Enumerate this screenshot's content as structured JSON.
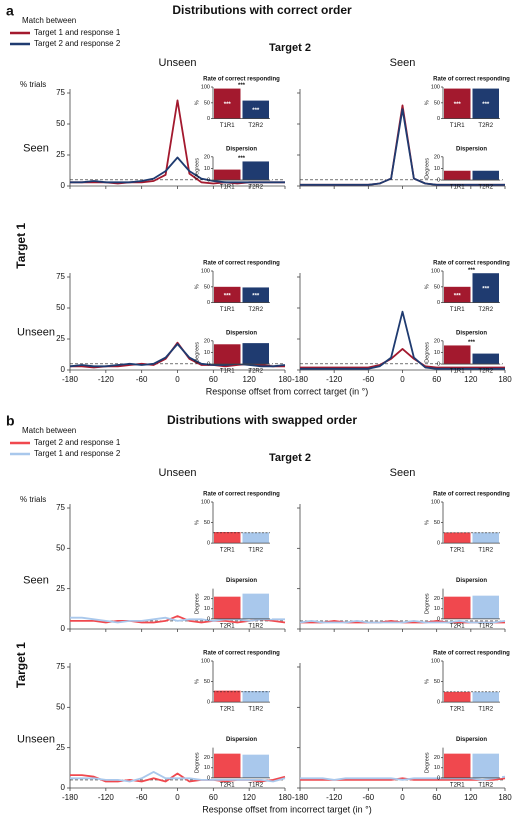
{
  "chart_data": [
    {
      "type": "line",
      "label": "a",
      "title": "Distributions with correct order",
      "legend_title": "Match between",
      "series": [
        {
          "name": "Target 1 and response 1",
          "color": "#a3192e"
        },
        {
          "name": "Target 2 and response 2",
          "color": "#1f3b70"
        }
      ],
      "column_title": "Target 2",
      "columns": [
        "Unseen",
        "Seen"
      ],
      "row_title": "Target 1",
      "rows": [
        "Seen",
        "Unseen"
      ],
      "ylabel": "% trials",
      "xlabel": "Response offset from correct target (in °)",
      "x": [
        -180,
        -160,
        -140,
        -120,
        -100,
        -80,
        -60,
        -40,
        -20,
        0,
        20,
        40,
        60,
        80,
        100,
        120,
        140,
        160,
        180
      ],
      "xlim": [
        -180,
        180
      ],
      "xticks": [
        -180,
        -120,
        -60,
        0,
        60,
        120,
        180
      ],
      "ylim": [
        0,
        75
      ],
      "yticks": [
        0,
        25,
        50,
        75
      ],
      "chance": 5,
      "rate": {
        "title": "Rate of correct responding",
        "ylabel": "%",
        "categories": [
          "T1R1",
          "T2R2"
        ],
        "ylim": [
          0,
          100
        ],
        "yticks": [
          0,
          50,
          100
        ]
      },
      "dispersion": {
        "title": "Dispersion",
        "ylabel": "Degrees",
        "categories": [
          "T1R1",
          "T2R2"
        ],
        "ylim": [
          0,
          20
        ],
        "yticks": [
          0,
          10,
          20
        ]
      },
      "plots": [
        {
          "values": [
            [
              3,
              3,
              3,
              3,
              2,
              3,
              3,
              4,
              9,
              69,
              10,
              3,
              2,
              3,
              2,
              3,
              3,
              3,
              3
            ],
            [
              3,
              3,
              4,
              3,
              3,
              3,
              4,
              6,
              12,
              23,
              12,
              6,
              4,
              3,
              3,
              3,
              3,
              3,
              3
            ]
          ],
          "rate": {
            "values": [
              95,
              57
            ],
            "bar_marks": [
              "***",
              "***"
            ],
            "significance": "***"
          },
          "dispersion": {
            "values": [
              9,
              16
            ],
            "significance": "***"
          }
        },
        {
          "values": [
            [
              1,
              1,
              1,
              1,
              1,
              1,
              1,
              2,
              6,
              65,
              6,
              2,
              1,
              1,
              1,
              1,
              1,
              1,
              1
            ],
            [
              1,
              1,
              1,
              1,
              1,
              1,
              1,
              2,
              6,
              62,
              6,
              2,
              1,
              1,
              1,
              1,
              1,
              1,
              1
            ]
          ],
          "rate": {
            "values": [
              95,
              95
            ],
            "bar_marks": [
              "***",
              "***"
            ]
          },
          "dispersion": {
            "values": [
              8,
              8
            ]
          }
        },
        {
          "values": [
            [
              3,
              3,
              2,
              3,
              3,
              4,
              5,
              4,
              9,
              22,
              9,
              4,
              4,
              3,
              4,
              5,
              4,
              3,
              3
            ],
            [
              3,
              4,
              3,
              3,
              4,
              5,
              4,
              5,
              10,
              21,
              10,
              5,
              4,
              4,
              5,
              4,
              3,
              3,
              4
            ]
          ],
          "rate": {
            "values": [
              50,
              48
            ],
            "bar_marks": [
              "***",
              "***"
            ]
          },
          "dispersion": {
            "values": [
              17,
              18
            ]
          }
        },
        {
          "values": [
            [
              2,
              2,
              2,
              2,
              2,
              2,
              2,
              4,
              9,
              17,
              9,
              3,
              2,
              2,
              2,
              2,
              2,
              2,
              2
            ],
            [
              1,
              1,
              1,
              1,
              1,
              1,
              1,
              3,
              10,
              47,
              10,
              2,
              1,
              1,
              1,
              1,
              1,
              1,
              1
            ]
          ],
          "rate": {
            "values": [
              50,
              93
            ],
            "bar_marks": [
              "***",
              "***"
            ],
            "significance": "***"
          },
          "dispersion": {
            "values": [
              16,
              9
            ],
            "significance": "***"
          }
        }
      ]
    },
    {
      "type": "line",
      "label": "b",
      "title": "Distributions with swapped order",
      "legend_title": "Match between",
      "series": [
        {
          "name": "Target 2 and response 1",
          "color": "#f0484e"
        },
        {
          "name": "Target 1 and response 2",
          "color": "#a9c8ec"
        }
      ],
      "column_title": "Target 2",
      "columns": [
        "Unseen",
        "Seen"
      ],
      "row_title": "Target 1",
      "rows": [
        "Seen",
        "Unseen"
      ],
      "ylabel": "% trials",
      "xlabel": "Response offset from incorrect target (in °)",
      "x": [
        -180,
        -160,
        -140,
        -120,
        -100,
        -80,
        -60,
        -40,
        -20,
        0,
        20,
        40,
        60,
        80,
        100,
        120,
        140,
        160,
        180
      ],
      "xlim": [
        -180,
        180
      ],
      "xticks": [
        -180,
        -120,
        -60,
        0,
        60,
        120,
        180
      ],
      "ylim": [
        0,
        75
      ],
      "yticks": [
        0,
        25,
        50,
        75
      ],
      "chance": 5,
      "rate": {
        "title": "Rate of correct responding",
        "ylabel": "%",
        "categories": [
          "T2R1",
          "T1R2"
        ],
        "ylim": [
          0,
          100
        ],
        "yticks": [
          0,
          50,
          100
        ],
        "chance": 25
      },
      "dispersion": {
        "title": "Dispersion",
        "ylabel": "Degrees",
        "categories": [
          "T2R1",
          "T1R2"
        ],
        "ylim": [
          0,
          30
        ],
        "yticks": [
          0,
          10,
          20
        ]
      },
      "plots": [
        {
          "values": [
            [
              5,
              5,
              5,
              4,
              5,
              5,
              4,
              4,
              5,
              8,
              5,
              4,
              5,
              5,
              4,
              5,
              6,
              5,
              4
            ],
            [
              7,
              7,
              6,
              5,
              4,
              5,
              5,
              6,
              7,
              5,
              6,
              6,
              5,
              6,
              6,
              5,
              6,
              6,
              6
            ]
          ],
          "rate": {
            "values": [
              27,
              26
            ]
          },
          "dispersion": {
            "values": [
              22,
              25
            ]
          }
        },
        {
          "values": [
            [
              4,
              4,
              4,
              5,
              4,
              4,
              4,
              4,
              5,
              4,
              4,
              4,
              5,
              4,
              4,
              4,
              4,
              4,
              4
            ],
            [
              4,
              5,
              4,
              4,
              4,
              5,
              4,
              4,
              4,
              4,
              5,
              4,
              4,
              4,
              5,
              4,
              4,
              4,
              5
            ]
          ],
          "rate": {
            "values": [
              26,
              26
            ]
          },
          "dispersion": {
            "values": [
              22,
              23
            ]
          }
        },
        {
          "values": [
            [
              8,
              8,
              7,
              4,
              4,
              5,
              4,
              6,
              4,
              9,
              4,
              5,
              5,
              4,
              5,
              5,
              4,
              5,
              7
            ],
            [
              6,
              6,
              6,
              5,
              5,
              4,
              6,
              10,
              6,
              6,
              6,
              5,
              5,
              5,
              5,
              5,
              5,
              4,
              6
            ]
          ],
          "rate": {
            "values": [
              28,
              27
            ]
          },
          "dispersion": {
            "values": [
              24,
              23
            ]
          }
        },
        {
          "values": [
            [
              5,
              5,
              5,
              5,
              5,
              5,
              5,
              5,
              5,
              6,
              5,
              5,
              5,
              5,
              5,
              5,
              5,
              5,
              6
            ],
            [
              6,
              6,
              6,
              5,
              6,
              6,
              6,
              6,
              6,
              5,
              6,
              6,
              6,
              6,
              6,
              6,
              5,
              6,
              7
            ]
          ],
          "rate": {
            "values": [
              25,
              25
            ]
          },
          "dispersion": {
            "values": [
              24,
              24
            ]
          }
        }
      ]
    }
  ]
}
